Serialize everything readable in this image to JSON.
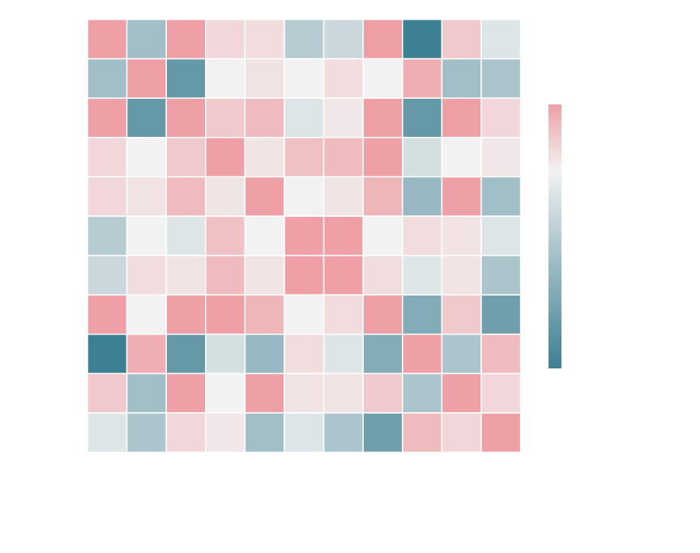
{
  "chart_data": {
    "type": "heatmap",
    "title": "",
    "xlabel": "",
    "ylabel": "",
    "rows": 11,
    "cols": 11,
    "vmin": -0.9,
    "vmax": 0.3,
    "center": 0,
    "grid": true,
    "colorbar": {
      "placement": "right",
      "ticks_shown": false
    },
    "colormap": {
      "low": "#3d7f93",
      "mid": "#f2f2f2",
      "high": "#eea0a6"
    },
    "values": [
      [
        0.3,
        -0.4,
        0.3,
        0.1,
        0.08,
        -0.3,
        -0.2,
        0.3,
        -0.9,
        0.15,
        -0.1
      ],
      [
        -0.4,
        0.3,
        -0.7,
        0.0,
        0.06,
        0.0,
        0.08,
        0.0,
        0.25,
        -0.4,
        -0.35
      ],
      [
        0.3,
        -0.7,
        0.3,
        0.15,
        0.2,
        -0.1,
        0.04,
        0.3,
        -0.7,
        0.3,
        0.1
      ],
      [
        0.1,
        0.0,
        0.15,
        0.3,
        0.05,
        0.18,
        0.2,
        0.3,
        -0.15,
        0.0,
        0.04
      ],
      [
        0.1,
        0.06,
        0.2,
        0.05,
        0.3,
        0.0,
        0.05,
        0.22,
        -0.45,
        0.3,
        -0.4
      ],
      [
        -0.3,
        0.0,
        -0.1,
        0.18,
        0.0,
        0.3,
        0.3,
        0.0,
        0.08,
        0.06,
        -0.1
      ],
      [
        -0.2,
        0.08,
        0.05,
        0.2,
        0.05,
        0.3,
        0.3,
        0.08,
        -0.1,
        0.05,
        -0.35
      ],
      [
        0.3,
        0.0,
        0.3,
        0.3,
        0.22,
        0.0,
        0.08,
        0.3,
        -0.55,
        0.15,
        -0.65
      ],
      [
        -0.9,
        0.25,
        -0.7,
        -0.15,
        -0.45,
        0.08,
        -0.1,
        -0.55,
        0.3,
        -0.35,
        0.2
      ],
      [
        0.15,
        -0.4,
        0.3,
        0.0,
        0.3,
        0.06,
        0.05,
        0.15,
        -0.35,
        0.3,
        0.1
      ],
      [
        -0.1,
        -0.35,
        0.1,
        0.04,
        -0.4,
        -0.1,
        -0.35,
        -0.65,
        0.2,
        0.1,
        0.3
      ]
    ]
  }
}
